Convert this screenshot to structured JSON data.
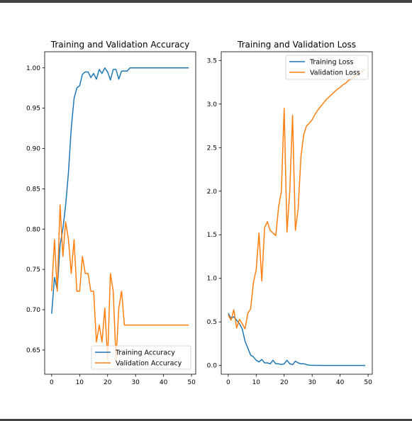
{
  "chart_data": [
    {
      "type": "line",
      "title": "Training and Validation Accuracy",
      "xlabel": "",
      "ylabel": "",
      "xlim": [
        -2.5,
        51.5
      ],
      "ylim": [
        0.62,
        1.02
      ],
      "xticks": [
        0,
        10,
        20,
        30,
        40,
        50
      ],
      "yticks": [
        0.65,
        0.7,
        0.75,
        0.8,
        0.85,
        0.9,
        0.95,
        1.0
      ],
      "ytick_labels": [
        "0.65",
        "0.70",
        "0.75",
        "0.80",
        "0.85",
        "0.90",
        "0.95",
        "1.00"
      ],
      "grid": false,
      "legend_position": "lower-right",
      "series": [
        {
          "name": "Training Accuracy",
          "color": "#1f77b4",
          "x": [
            0,
            1,
            2,
            3,
            4,
            5,
            6,
            7,
            8,
            9,
            10,
            11,
            12,
            13,
            14,
            15,
            16,
            17,
            18,
            19,
            20,
            21,
            22,
            23,
            24,
            25,
            26,
            27,
            28,
            29,
            30,
            31,
            32,
            33,
            34,
            35,
            36,
            37,
            38,
            39,
            40,
            41,
            42,
            43,
            44,
            45,
            46,
            47,
            48,
            49
          ],
          "y": [
            0.695,
            0.74,
            0.725,
            0.78,
            0.8,
            0.83,
            0.87,
            0.925,
            0.962,
            0.975,
            0.978,
            0.992,
            0.995,
            0.995,
            0.988,
            0.993,
            0.986,
            0.998,
            0.993,
            1.0,
            0.995,
            0.985,
            0.998,
            0.998,
            0.986,
            0.996,
            0.996,
            0.996,
            1.0,
            1.0,
            1.0,
            1.0,
            1.0,
            1.0,
            1.0,
            1.0,
            1.0,
            1.0,
            1.0,
            1.0,
            1.0,
            1.0,
            1.0,
            1.0,
            1.0,
            1.0,
            1.0,
            1.0,
            1.0,
            1.0
          ]
        },
        {
          "name": "Validation Accuracy",
          "color": "#ff7f0e",
          "x": [
            0,
            1,
            2,
            3,
            4,
            5,
            6,
            7,
            8,
            9,
            10,
            11,
            12,
            13,
            14,
            15,
            16,
            17,
            18,
            19,
            20,
            21,
            22,
            23,
            24,
            25,
            26,
            27,
            28,
            29,
            30,
            31,
            32,
            33,
            34,
            35,
            36,
            37,
            38,
            39,
            40,
            41,
            42,
            43,
            44,
            45,
            46,
            47,
            48,
            49
          ],
          "y": [
            0.723,
            0.787,
            0.723,
            0.83,
            0.766,
            0.809,
            0.787,
            0.745,
            0.787,
            0.723,
            0.723,
            0.766,
            0.745,
            0.745,
            0.723,
            0.723,
            0.66,
            0.681,
            0.66,
            0.702,
            0.638,
            0.745,
            0.723,
            0.638,
            0.702,
            0.723,
            0.681,
            0.681,
            0.681,
            0.681,
            0.681,
            0.681,
            0.681,
            0.681,
            0.681,
            0.681,
            0.681,
            0.681,
            0.681,
            0.681,
            0.681,
            0.681,
            0.681,
            0.681,
            0.681,
            0.681,
            0.681,
            0.681,
            0.681,
            0.681
          ]
        }
      ]
    },
    {
      "type": "line",
      "title": "Training and Validation Loss",
      "xlabel": "",
      "ylabel": "",
      "xlim": [
        -2.5,
        51.5
      ],
      "ylim": [
        -0.1,
        3.6
      ],
      "xticks": [
        0,
        10,
        20,
        30,
        40,
        50
      ],
      "yticks": [
        0.0,
        0.5,
        1.0,
        1.5,
        2.0,
        2.5,
        3.0,
        3.5
      ],
      "ytick_labels": [
        "0.0",
        "0.5",
        "1.0",
        "1.5",
        "2.0",
        "2.5",
        "3.0",
        "3.5"
      ],
      "grid": false,
      "legend_position": "upper-right",
      "series": [
        {
          "name": "Training Loss",
          "color": "#1f77b4",
          "x": [
            0,
            1,
            2,
            3,
            4,
            5,
            6,
            7,
            8,
            9,
            10,
            11,
            12,
            13,
            14,
            15,
            16,
            17,
            18,
            19,
            20,
            21,
            22,
            23,
            24,
            25,
            26,
            27,
            28,
            29,
            30,
            31,
            32,
            33,
            34,
            35,
            36,
            37,
            38,
            39,
            40,
            41,
            42,
            43,
            44,
            45,
            46,
            47,
            48,
            49
          ],
          "y": [
            0.6,
            0.54,
            0.56,
            0.52,
            0.48,
            0.42,
            0.28,
            0.2,
            0.12,
            0.1,
            0.06,
            0.04,
            0.07,
            0.03,
            0.03,
            0.02,
            0.06,
            0.02,
            0.02,
            0.01,
            0.02,
            0.06,
            0.02,
            0.01,
            0.05,
            0.03,
            0.02,
            0.02,
            0.01,
            0.004,
            0.003,
            0.002,
            0.002,
            0.002,
            0.001,
            0.001,
            0.001,
            0.001,
            0.001,
            0.001,
            0.001,
            0.001,
            0.001,
            0.001,
            0.001,
            0.001,
            0.001,
            0.001,
            0.001,
            0.001
          ]
        },
        {
          "name": "Validation Loss",
          "color": "#ff7f0e",
          "x": [
            0,
            1,
            2,
            3,
            4,
            5,
            6,
            7,
            8,
            9,
            10,
            11,
            12,
            13,
            14,
            15,
            16,
            17,
            18,
            19,
            20,
            21,
            22,
            23,
            24,
            25,
            26,
            27,
            28,
            29,
            30,
            31,
            32,
            33,
            34,
            35,
            36,
            37,
            38,
            39,
            40,
            41,
            42,
            43,
            44,
            45,
            46,
            47,
            48,
            49
          ],
          "y": [
            0.58,
            0.52,
            0.64,
            0.43,
            0.53,
            0.48,
            0.42,
            0.6,
            0.65,
            0.95,
            1.1,
            1.52,
            0.97,
            1.58,
            1.65,
            1.55,
            1.52,
            1.49,
            1.82,
            2.0,
            2.95,
            1.53,
            2.0,
            2.87,
            1.55,
            1.8,
            2.4,
            2.65,
            2.75,
            2.78,
            2.82,
            2.88,
            2.93,
            2.97,
            3.01,
            3.05,
            3.08,
            3.11,
            3.14,
            3.17,
            3.19,
            3.22,
            3.24,
            3.27,
            3.29,
            3.31,
            3.33,
            3.36,
            3.38,
            3.4
          ]
        }
      ]
    }
  ]
}
